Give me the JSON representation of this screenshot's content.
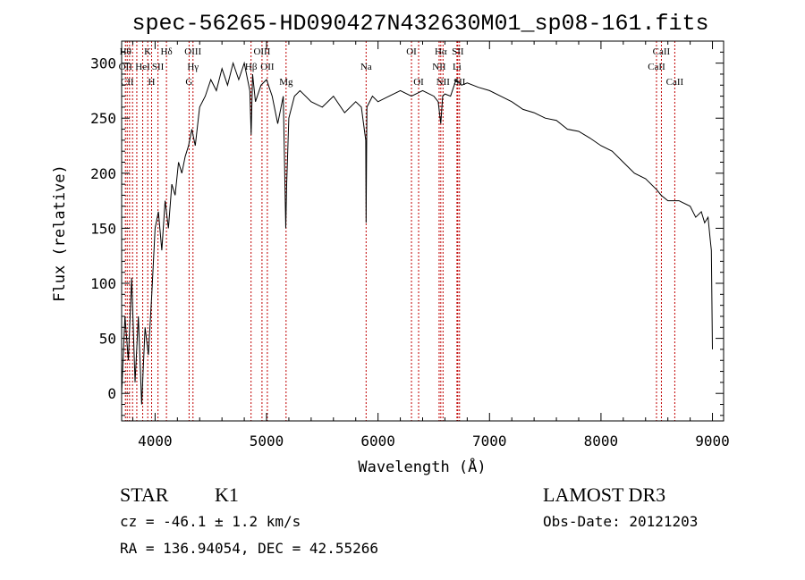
{
  "chart_data": {
    "type": "line",
    "title": "spec-56265-HD090427N432630M01_sp08-161.fits",
    "xlabel": "Wavelength (Å)",
    "ylabel": "Flux (relative)",
    "xlim": [
      3700,
      9100
    ],
    "ylim": [
      -25,
      320
    ],
    "xticks": [
      {
        "value": 4000,
        "label": "4000"
      },
      {
        "value": 5000,
        "label": "5000"
      },
      {
        "value": 6000,
        "label": "6000"
      },
      {
        "value": 7000,
        "label": "7000"
      },
      {
        "value": 8000,
        "label": "8000"
      },
      {
        "value": 9000,
        "label": "9000"
      }
    ],
    "yticks": [
      {
        "value": 0,
        "label": "0"
      },
      {
        "value": 50,
        "label": "50"
      },
      {
        "value": 100,
        "label": "100"
      },
      {
        "value": 150,
        "label": "150"
      },
      {
        "value": 200,
        "label": "200"
      },
      {
        "value": 250,
        "label": "250"
      },
      {
        "value": 300,
        "label": "300"
      }
    ],
    "series": [
      {
        "values_x": [
          3700,
          3730,
          3760,
          3790,
          3820,
          3850,
          3880,
          3910,
          3940,
          3970,
          4000,
          4030,
          4060,
          4090,
          4120,
          4150,
          4180,
          4210,
          4240,
          4270,
          4300,
          4330,
          4360,
          4400,
          4450,
          4500,
          4550,
          4600,
          4650,
          4700,
          4750,
          4800,
          4850,
          4862,
          4875,
          4900,
          4950,
          5000,
          5050,
          5100,
          5150,
          5172,
          5180,
          5200,
          5250,
          5300,
          5400,
          5500,
          5600,
          5700,
          5800,
          5850,
          5890,
          5893,
          5900,
          5950,
          6000,
          6100,
          6200,
          6300,
          6400,
          6500,
          6540,
          6563,
          6580,
          6600,
          6650,
          6700,
          6750,
          6800,
          6900,
          7000,
          7100,
          7200,
          7300,
          7400,
          7500,
          7600,
          7700,
          7800,
          7900,
          8000,
          8100,
          8200,
          8300,
          8400,
          8500,
          8540,
          8600,
          8700,
          8800,
          8850,
          8900,
          8930,
          8960,
          8980,
          8990,
          9000
        ],
        "values_y": [
          0,
          70,
          30,
          105,
          10,
          70,
          -10,
          60,
          35,
          90,
          150,
          165,
          130,
          175,
          150,
          190,
          180,
          210,
          200,
          215,
          225,
          240,
          225,
          260,
          270,
          285,
          275,
          295,
          280,
          300,
          285,
          300,
          275,
          235,
          290,
          265,
          280,
          285,
          270,
          245,
          270,
          150,
          190,
          250,
          270,
          275,
          265,
          260,
          270,
          255,
          265,
          260,
          230,
          155,
          260,
          270,
          265,
          270,
          275,
          270,
          275,
          270,
          265,
          245,
          270,
          272,
          270,
          285,
          280,
          282,
          278,
          275,
          270,
          265,
          258,
          255,
          250,
          248,
          240,
          238,
          232,
          225,
          220,
          210,
          200,
          195,
          185,
          180,
          175,
          175,
          170,
          160,
          165,
          155,
          160,
          140,
          130,
          40
        ]
      }
    ],
    "lines": [
      {
        "x": 3734,
        "labels": [
          {
            "text": "Hθ",
            "row": 1
          },
          {
            "text": "OII",
            "row": 2
          }
        ]
      },
      {
        "x": 3750,
        "labels": [
          {
            "text": "CII",
            "row": 3
          }
        ]
      },
      {
        "x": 3771,
        "labels": []
      },
      {
        "x": 3798,
        "labels": []
      },
      {
        "x": 3836,
        "labels": []
      },
      {
        "x": 3889,
        "labels": [
          {
            "text": "HeI",
            "row": 2
          }
        ]
      },
      {
        "x": 3934,
        "labels": [
          {
            "text": "K",
            "row": 1
          }
        ]
      },
      {
        "x": 3969,
        "labels": [
          {
            "text": "H",
            "row": 3
          }
        ]
      },
      {
        "x": 4026,
        "labels": [
          {
            "text": "SII",
            "row": 2
          }
        ]
      },
      {
        "x": 4102,
        "labels": [
          {
            "text": "Hδ",
            "row": 1
          }
        ]
      },
      {
        "x": 4305,
        "labels": [
          {
            "text": "G",
            "row": 3
          }
        ]
      },
      {
        "x": 4340,
        "labels": [
          {
            "text": "OIII",
            "row": 1
          },
          {
            "text": "Hγ",
            "row": 2
          }
        ]
      },
      {
        "x": 4861,
        "labels": [
          {
            "text": "Hβ",
            "row": 2
          }
        ]
      },
      {
        "x": 4959,
        "labels": [
          {
            "text": "OIII",
            "row": 1
          }
        ]
      },
      {
        "x": 5007,
        "labels": [
          {
            "text": "OII",
            "row": 2
          }
        ]
      },
      {
        "x": 5175,
        "labels": [
          {
            "text": "Mg",
            "row": 3
          }
        ]
      },
      {
        "x": 5893,
        "labels": [
          {
            "text": "Na",
            "row": 2
          }
        ]
      },
      {
        "x": 6300,
        "labels": [
          {
            "text": "OI",
            "row": 1
          }
        ]
      },
      {
        "x": 6364,
        "labels": [
          {
            "text": "OI",
            "row": 3
          }
        ]
      },
      {
        "x": 6548,
        "labels": [
          {
            "text": "NII",
            "row": 2
          }
        ]
      },
      {
        "x": 6563,
        "labels": [
          {
            "text": "Hα",
            "row": 1
          }
        ]
      },
      {
        "x": 6583,
        "labels": [
          {
            "text": "NII",
            "row": 3
          }
        ]
      },
      {
        "x": 6708,
        "labels": [
          {
            "text": "Li",
            "row": 2
          }
        ]
      },
      {
        "x": 6716,
        "labels": [
          {
            "text": "SII",
            "row": 1
          }
        ]
      },
      {
        "x": 6731,
        "labels": [
          {
            "text": "SII",
            "row": 3
          }
        ]
      },
      {
        "x": 8498,
        "labels": [
          {
            "text": "CaII",
            "row": 2
          }
        ]
      },
      {
        "x": 8542,
        "labels": [
          {
            "text": "CaII",
            "row": 1
          }
        ]
      },
      {
        "x": 8662,
        "labels": [
          {
            "text": "CaII",
            "row": 3
          }
        ]
      }
    ],
    "grid": false,
    "colors": {
      "spectrum": "#000000",
      "line_marker": "#c00000",
      "axes": "#000000"
    }
  },
  "info": {
    "object_type": "STAR",
    "spectral_class": "K1",
    "survey": "LAMOST DR3",
    "redshift": "cz = -46.1 ± 1.2 km/s",
    "obs_date": "Obs-Date: 20121203",
    "coords": "RA = 136.94054, DEC =  42.55266"
  }
}
